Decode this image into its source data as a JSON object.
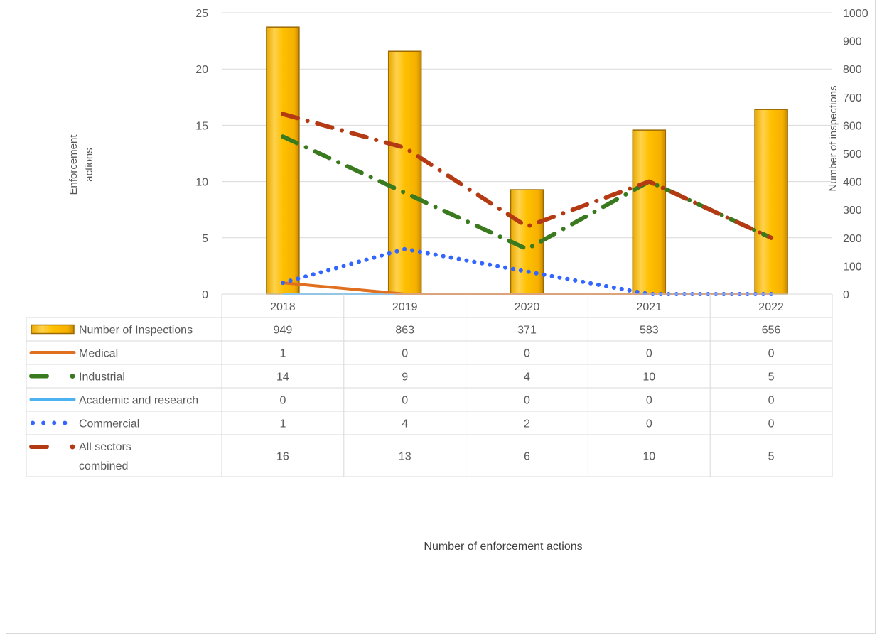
{
  "chart_data": {
    "type": "bar",
    "categories": [
      "2018",
      "2019",
      "2020",
      "2021",
      "2022"
    ],
    "y_left": {
      "label": "Enforcement actions",
      "range": [
        0,
        25
      ],
      "ticks": [
        "0",
        "5",
        "10",
        "15",
        "20",
        "25"
      ]
    },
    "y_right": {
      "label": "Number of inspections",
      "range": [
        0,
        1000
      ],
      "ticks": [
        "0",
        "100",
        "200",
        "300",
        "400",
        "500",
        "600",
        "700",
        "800",
        "900",
        "1000"
      ]
    },
    "xlabel": "Number of enforcement actions",
    "grid": true,
    "series": [
      {
        "name": "Number of Inspections",
        "kind": "bar",
        "axis": "right",
        "color": "#FFC000",
        "values": [
          949,
          863,
          371,
          583,
          656
        ]
      },
      {
        "name": "Medical",
        "kind": "line",
        "axis": "left",
        "color": "#E07020",
        "style": "solid",
        "values": [
          1,
          0,
          0,
          0,
          0
        ]
      },
      {
        "name": "Industrial",
        "kind": "line",
        "axis": "left",
        "color": "#3A7A1E",
        "style": "dashdot",
        "values": [
          14,
          9,
          4,
          10,
          5
        ]
      },
      {
        "name": "Academic and research",
        "kind": "line",
        "axis": "left",
        "color": "#4DB3F0",
        "style": "solid",
        "values": [
          0,
          0,
          0,
          0,
          0
        ]
      },
      {
        "name": "Commercial",
        "kind": "line",
        "axis": "left",
        "color": "#3366FF",
        "style": "dotted",
        "values": [
          1,
          4,
          2,
          0,
          0
        ]
      },
      {
        "name": "All sectors\ncombined",
        "kind": "line",
        "axis": "left",
        "color": "#B33A12",
        "style": "dashdot",
        "values": [
          16,
          13,
          6,
          10,
          5
        ]
      }
    ],
    "data_table": [
      [
        "949",
        "863",
        "371",
        "583",
        "656"
      ],
      [
        "1",
        "0",
        "0",
        "0",
        "0"
      ],
      [
        "14",
        "9",
        "4",
        "10",
        "5"
      ],
      [
        "0",
        "0",
        "0",
        "0",
        "0"
      ],
      [
        "1",
        "4",
        "2",
        "0",
        "0"
      ],
      [
        "16",
        "13",
        "6",
        "10",
        "5"
      ]
    ]
  }
}
